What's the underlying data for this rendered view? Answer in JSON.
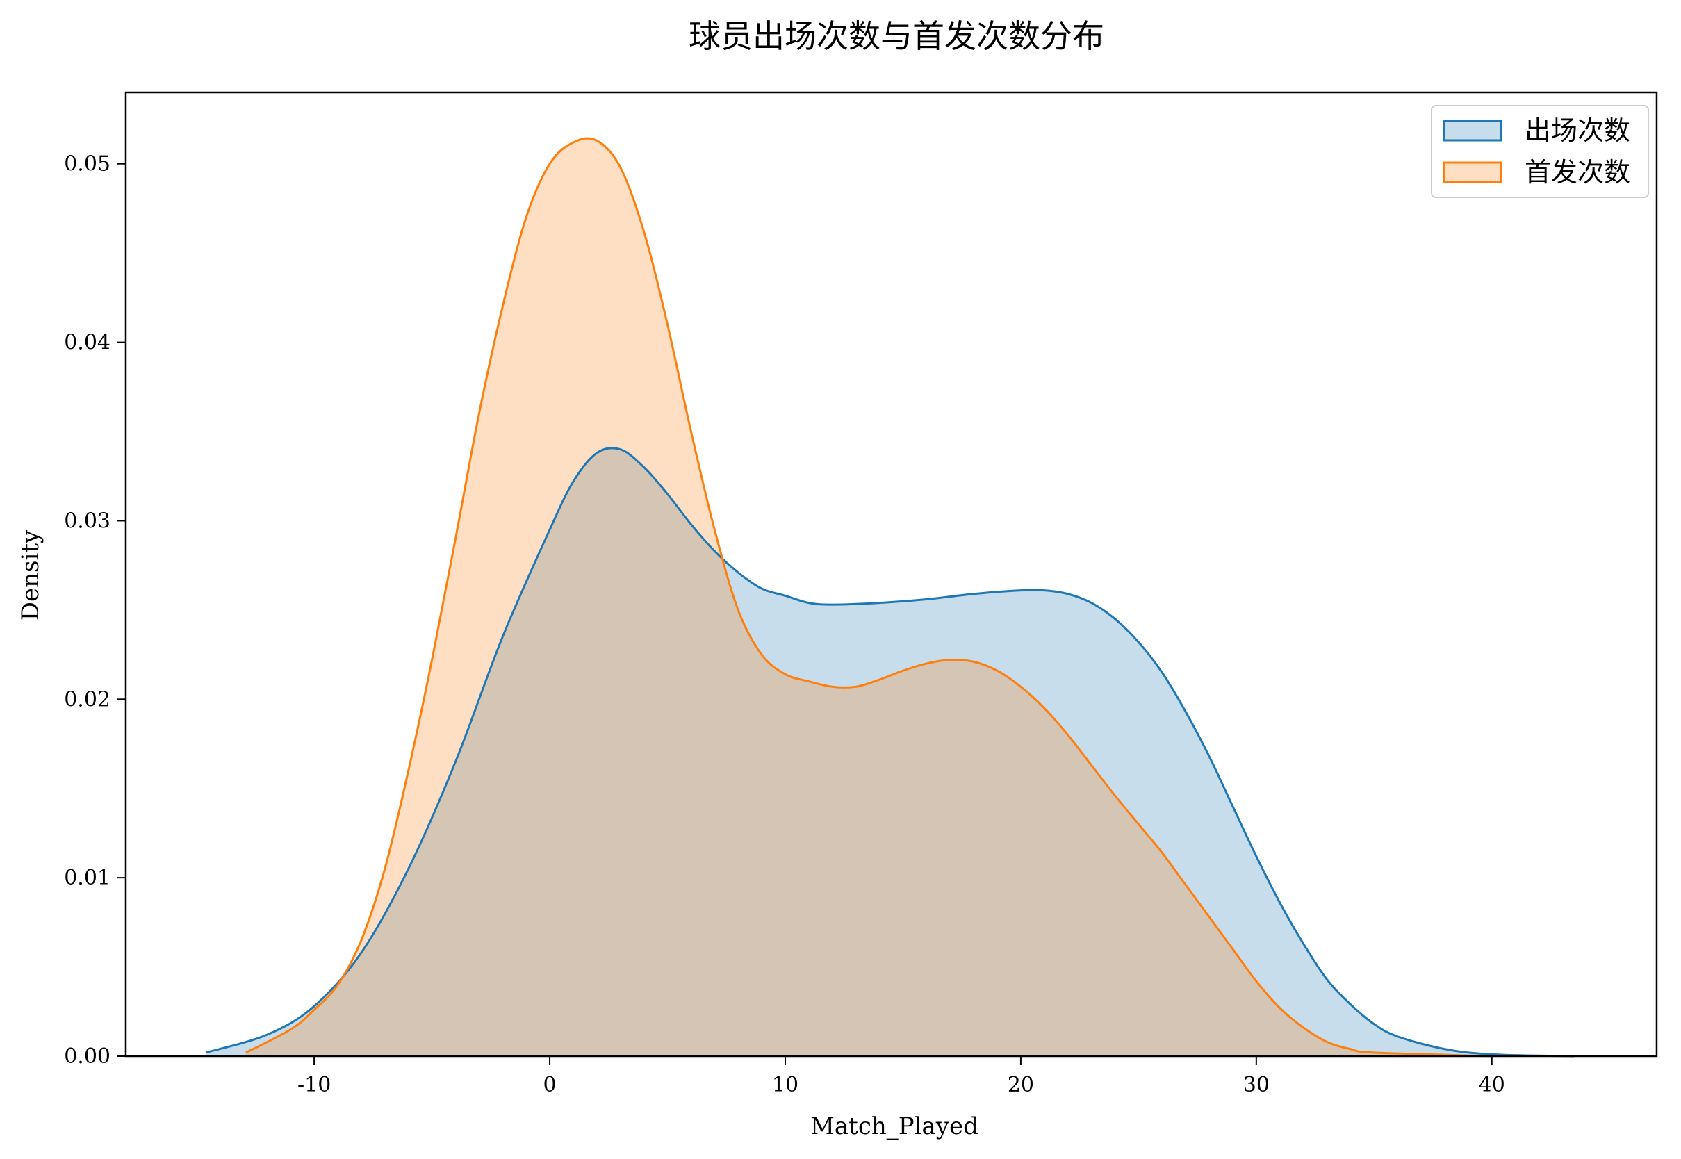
{
  "chart_data": {
    "type": "area",
    "subtype": "kde",
    "title": "球员出场次数与首发次数分布",
    "xlabel": "Match_Played",
    "ylabel": "Density",
    "xlim": [
      -18,
      47
    ],
    "ylim": [
      0,
      0.054
    ],
    "xticks": [
      -10,
      0,
      10,
      20,
      30,
      40
    ],
    "yticks": [
      0.0,
      0.01,
      0.02,
      0.03,
      0.04,
      0.05
    ],
    "grid": false,
    "legend_position": "top-right",
    "series": [
      {
        "name": "出场次数",
        "color": "#1f77b4",
        "fill_opacity": 0.25,
        "points": [
          [
            -14.6,
            0.0002
          ],
          [
            -12,
            0.0012
          ],
          [
            -10,
            0.0028
          ],
          [
            -8,
            0.0058
          ],
          [
            -6,
            0.0105
          ],
          [
            -4,
            0.0165
          ],
          [
            -2,
            0.0235
          ],
          [
            0,
            0.0295
          ],
          [
            1,
            0.0322
          ],
          [
            2,
            0.0338
          ],
          [
            3,
            0.034
          ],
          [
            4,
            0.033
          ],
          [
            5,
            0.0315
          ],
          [
            6,
            0.0298
          ],
          [
            7,
            0.0283
          ],
          [
            8,
            0.0271
          ],
          [
            9,
            0.0262
          ],
          [
            10,
            0.0258
          ],
          [
            11,
            0.0254
          ],
          [
            12,
            0.0253
          ],
          [
            14,
            0.0254
          ],
          [
            16,
            0.0256
          ],
          [
            18,
            0.0259
          ],
          [
            20,
            0.0261
          ],
          [
            21,
            0.0261
          ],
          [
            22,
            0.0259
          ],
          [
            23,
            0.0254
          ],
          [
            24,
            0.0245
          ],
          [
            25,
            0.0232
          ],
          [
            26,
            0.0215
          ],
          [
            27,
            0.0193
          ],
          [
            28,
            0.0168
          ],
          [
            29,
            0.014
          ],
          [
            30,
            0.0112
          ],
          [
            31,
            0.0086
          ],
          [
            32,
            0.0063
          ],
          [
            33,
            0.0043
          ],
          [
            34,
            0.0029
          ],
          [
            35,
            0.0018
          ],
          [
            36,
            0.0011
          ],
          [
            38,
            0.0004
          ],
          [
            40,
            0.0001
          ],
          [
            43.5,
            0.0
          ]
        ]
      },
      {
        "name": "首发次数",
        "color": "#ff7f0e",
        "fill_opacity": 0.25,
        "points": [
          [
            -12.9,
            0.0002
          ],
          [
            -11,
            0.0015
          ],
          [
            -10,
            0.0026
          ],
          [
            -9,
            0.004
          ],
          [
            -8,
            0.0065
          ],
          [
            -7,
            0.0105
          ],
          [
            -6,
            0.016
          ],
          [
            -5,
            0.0222
          ],
          [
            -4,
            0.029
          ],
          [
            -3,
            0.036
          ],
          [
            -2,
            0.042
          ],
          [
            -1,
            0.047
          ],
          [
            0,
            0.05
          ],
          [
            1,
            0.0512
          ],
          [
            2,
            0.0513
          ],
          [
            3,
            0.0498
          ],
          [
            4,
            0.0462
          ],
          [
            5,
            0.041
          ],
          [
            6,
            0.035
          ],
          [
            7,
            0.0295
          ],
          [
            8,
            0.025
          ],
          [
            9,
            0.0225
          ],
          [
            10,
            0.0214
          ],
          [
            11,
            0.021
          ],
          [
            12,
            0.0207
          ],
          [
            13,
            0.0207
          ],
          [
            14,
            0.0211
          ],
          [
            15,
            0.0216
          ],
          [
            16,
            0.022
          ],
          [
            17,
            0.0222
          ],
          [
            18,
            0.0221
          ],
          [
            19,
            0.0216
          ],
          [
            20,
            0.0207
          ],
          [
            21,
            0.0195
          ],
          [
            22,
            0.018
          ],
          [
            23,
            0.0163
          ],
          [
            24,
            0.0146
          ],
          [
            25,
            0.013
          ],
          [
            26,
            0.0114
          ],
          [
            27,
            0.0096
          ],
          [
            28,
            0.0078
          ],
          [
            29,
            0.006
          ],
          [
            30,
            0.0042
          ],
          [
            31,
            0.0027
          ],
          [
            32,
            0.0016
          ],
          [
            33,
            0.0008
          ],
          [
            34,
            0.0004
          ],
          [
            35,
            0.0002
          ],
          [
            40,
            0.0
          ]
        ]
      }
    ]
  }
}
